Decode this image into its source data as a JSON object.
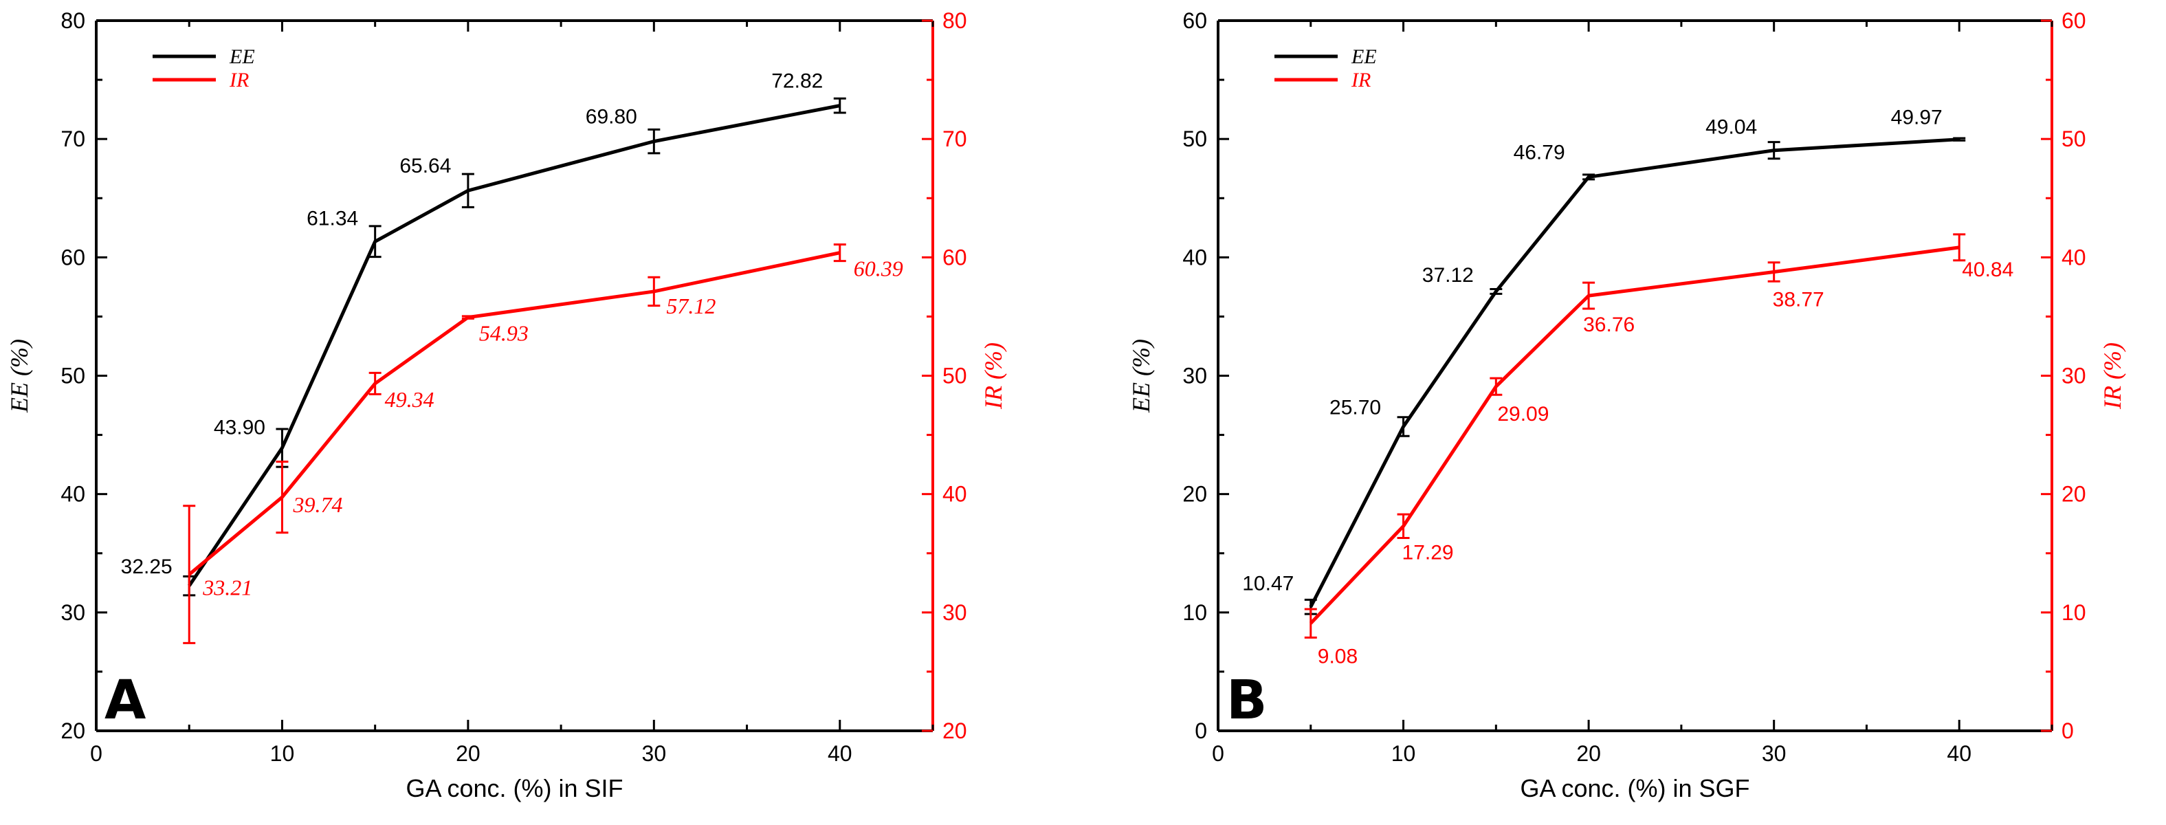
{
  "chart_data": [
    {
      "type": "line",
      "panel_label": "A",
      "xlabel": "GA conc. (%) in SIF",
      "ylabel": "EE (%)",
      "y2label": "IR (%)",
      "xlim": [
        0,
        45
      ],
      "ylim": [
        20,
        80
      ],
      "y2lim": [
        20,
        80
      ],
      "xticks": [
        "0",
        "10",
        "20",
        "30",
        "40"
      ],
      "yticks": [
        "20",
        "30",
        "40",
        "50",
        "60",
        "70",
        "80"
      ],
      "y2ticks": [
        "20",
        "30",
        "40",
        "50",
        "60",
        "70",
        "80"
      ],
      "x": [
        5,
        10,
        15,
        20,
        30,
        40
      ],
      "legend_position": "top-left",
      "grid": false,
      "series": [
        {
          "name": "EE",
          "axis": "left",
          "color": "#000000",
          "values": [
            32.25,
            43.9,
            61.34,
            65.64,
            69.8,
            72.82
          ],
          "errors": [
            0.8,
            1.6,
            1.3,
            1.4,
            1.0,
            0.6
          ],
          "labels": [
            "32.25",
            "43.90",
            "61.34",
            "65.64",
            "69.80",
            "72.82"
          ]
        },
        {
          "name": "IR",
          "axis": "right",
          "color": "#ff0000",
          "values": [
            33.21,
            39.74,
            49.34,
            54.93,
            57.12,
            60.39
          ],
          "errors": [
            5.8,
            3.0,
            0.9,
            0.1,
            1.2,
            0.7
          ],
          "labels": [
            "33.21",
            "39.74",
            "49.34",
            "54.93",
            "57.12",
            "60.39"
          ]
        }
      ]
    },
    {
      "type": "line",
      "panel_label": "B",
      "xlabel": "GA conc. (%) in SGF",
      "ylabel": "EE (%)",
      "y2label": "IR (%)",
      "xlim": [
        0,
        45
      ],
      "ylim": [
        0,
        60
      ],
      "y2lim": [
        0,
        60
      ],
      "xticks": [
        "0",
        "10",
        "20",
        "30",
        "40"
      ],
      "yticks": [
        "0",
        "10",
        "20",
        "30",
        "40",
        "50",
        "60"
      ],
      "y2ticks": [
        "0",
        "10",
        "20",
        "30",
        "40",
        "50",
        "60"
      ],
      "x": [
        5,
        10,
        15,
        20,
        30,
        40
      ],
      "legend_position": "top-left",
      "grid": false,
      "series": [
        {
          "name": "EE",
          "axis": "left",
          "color": "#000000",
          "values": [
            10.47,
            25.7,
            37.12,
            46.79,
            49.04,
            49.97
          ],
          "errors": [
            0.6,
            0.8,
            0.2,
            0.2,
            0.7,
            0.1
          ],
          "labels": [
            "10.47",
            "25.70",
            "37.12",
            "46.79",
            "49.04",
            "49.97"
          ]
        },
        {
          "name": "IR",
          "axis": "right",
          "color": "#ff0000",
          "values": [
            9.08,
            17.29,
            29.09,
            36.76,
            38.77,
            40.84
          ],
          "errors": [
            1.2,
            1.0,
            0.7,
            1.1,
            0.8,
            1.1
          ],
          "labels": [
            "9.08",
            "17.29",
            "29.09",
            "36.76",
            "38.77",
            "40.84"
          ]
        }
      ]
    }
  ]
}
